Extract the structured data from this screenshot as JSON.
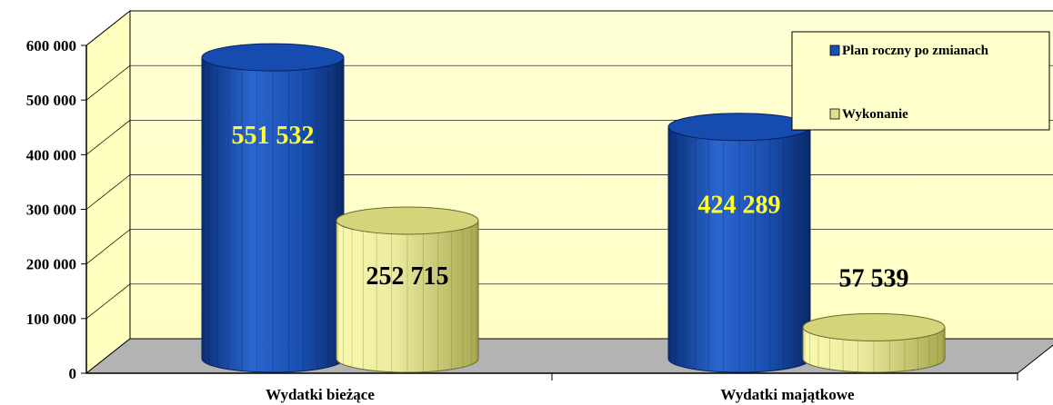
{
  "chart_data": {
    "type": "bar",
    "title": "",
    "xlabel": "",
    "ylabel": "",
    "ylim": [
      0,
      600000
    ],
    "yticks": [
      "0",
      "100 000",
      "200 000",
      "300 000",
      "400 000",
      "500 000",
      "600 000"
    ],
    "categories": [
      "Wydatki bieżące",
      "Wydatki majątkowe"
    ],
    "series": [
      {
        "name": "Plan roczny po zmianach",
        "values": [
          551532,
          424289
        ],
        "labels": [
          "551 532",
          "424 289"
        ],
        "color": "#1a50b4",
        "label_color": "#ffff33"
      },
      {
        "name": "Wykonanie",
        "values": [
          252715,
          57539
        ],
        "labels": [
          "252 715",
          "57 539"
        ],
        "color": "#e0e08a",
        "label_color": "#000000"
      }
    ],
    "legend_position": "top-right",
    "grid": true,
    "style": "3d-cylinder"
  },
  "colors": {
    "wall": "#ffffcc",
    "floor": "#b3b3b3",
    "legend_bg": "#ffffcc"
  }
}
